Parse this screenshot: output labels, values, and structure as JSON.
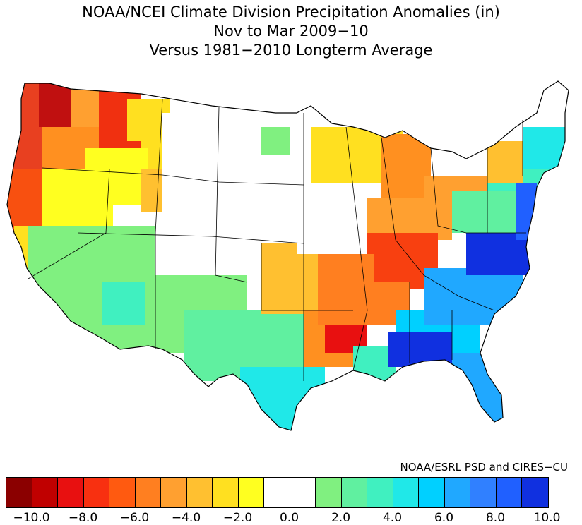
{
  "title": {
    "line1": "NOAA/NCEI Climate Division Precipitation Anomalies (in)",
    "line2": "Nov to Mar 2009−10",
    "line3": "Versus 1981−2010 Longterm Average"
  },
  "credit": "NOAA/ESRL PSD and CIRES−CU",
  "legend": {
    "colors": [
      "#8b0000",
      "#c00000",
      "#e81010",
      "#f83010",
      "#ff5a10",
      "#ff7f20",
      "#ffa030",
      "#ffc030",
      "#ffe020",
      "#ffff20",
      "#ffffff",
      "#ffffff",
      "#80f080",
      "#60f0a0",
      "#40f0c0",
      "#20e8e8",
      "#00d0ff",
      "#20a8ff",
      "#3080ff",
      "#2060ff",
      "#1030e0"
    ],
    "tick_labels": [
      "−10.0",
      "−8.0",
      "−6.0",
      "−4.0",
      "−2.0",
      "0.0",
      "2.0",
      "4.0",
      "6.0",
      "8.0",
      "10.0"
    ]
  },
  "map_regions": [
    {
      "name": "pacific-northwest-coast",
      "color": "#e84020"
    },
    {
      "name": "washington-cascades",
      "color": "#c01010"
    },
    {
      "name": "idaho-panhandle",
      "color": "#f03010"
    },
    {
      "name": "oregon-interior",
      "color": "#ff9020"
    },
    {
      "name": "california-north",
      "color": "#f85010"
    },
    {
      "name": "california-south",
      "color": "#ffe020"
    },
    {
      "name": "great-basin",
      "color": "#ffff20"
    },
    {
      "name": "montana-wyoming",
      "color": "#ffe020"
    },
    {
      "name": "southwest-desert",
      "color": "#80f080"
    },
    {
      "name": "texas",
      "color": "#60f0a0"
    },
    {
      "name": "texas-coast",
      "color": "#20e8e8"
    },
    {
      "name": "central-plains",
      "color": "#ffffff"
    },
    {
      "name": "ohio-valley",
      "color": "#ff7f20"
    },
    {
      "name": "kentucky-tennessee",
      "color": "#f84010"
    },
    {
      "name": "lower-mississippi",
      "color": "#e81010"
    },
    {
      "name": "southeast",
      "color": "#00d0ff"
    },
    {
      "name": "georgia-alabama",
      "color": "#1030e0"
    },
    {
      "name": "florida",
      "color": "#20a8ff"
    },
    {
      "name": "mid-atlantic",
      "color": "#2050ff"
    },
    {
      "name": "northeast",
      "color": "#40f0c0"
    },
    {
      "name": "great-lakes",
      "color": "#ffa030"
    },
    {
      "name": "upper-midwest",
      "color": "#ffe020"
    }
  ]
}
